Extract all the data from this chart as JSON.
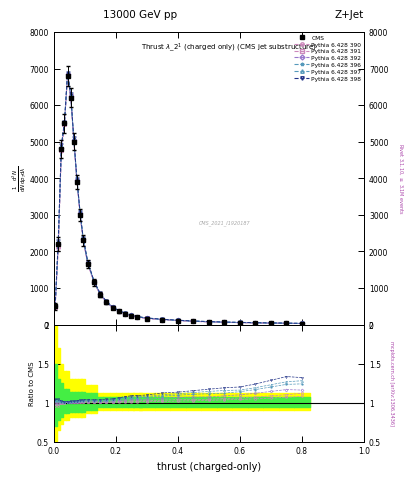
{
  "title_top": "13000 GeV pp",
  "title_right": "Z+Jet",
  "plot_title": "Thrust $\\lambda\\_2^1$ (charged only) (CMS jet substructure)",
  "xlabel": "thrust (charged-only)",
  "ylabel_main": "$\\frac{1}{\\mathrm{d}N}\\frac{\\mathrm{d}^2N}{\\mathrm{d}p_T\\mathrm{d}\\lambda}$",
  "ylabel_ratio": "Ratio to CMS",
  "right_label_main": "Rivet 3.1.10, $\\geq$ 3.1M events",
  "right_label_ratio": "mcplots.cern.ch [arXiv:1306.3436]",
  "watermark": "CMS_2021_I1920187",
  "cms_label": "CMS",
  "legend_entries": [
    "Pythia 6.428 390",
    "Pythia 6.428 391",
    "Pythia 6.428 392",
    "Pythia 6.428 396",
    "Pythia 6.428 397",
    "Pythia 6.428 398"
  ],
  "line_colors": [
    "#cc88bb",
    "#cc88bb",
    "#9977cc",
    "#5599bb",
    "#5599bb",
    "#223388"
  ],
  "marker_styles": [
    "o",
    "s",
    "D",
    "*",
    "^",
    "v"
  ],
  "ylim_main": [
    0,
    8000
  ],
  "ylim_ratio": [
    0.5,
    2.0
  ],
  "xlim": [
    0.0,
    1.0
  ],
  "yticks_main": [
    0,
    1000,
    2000,
    3000,
    4000,
    5000,
    6000,
    7000,
    8000
  ],
  "ytick_labels_main": [
    "0",
    "1000",
    "2000",
    "3000",
    "4000",
    "5000",
    "6000",
    "7000",
    "8000"
  ],
  "yticks_ratio": [
    0.5,
    1.0,
    1.5,
    2.0
  ],
  "ytick_labels_ratio": [
    "0.5",
    "1",
    "1.5",
    "2"
  ],
  "background_color": "#ffffff",
  "thrust_bins": [
    0.005,
    0.015,
    0.025,
    0.035,
    0.045,
    0.055,
    0.065,
    0.075,
    0.085,
    0.095,
    0.11,
    0.13,
    0.15,
    0.17,
    0.19,
    0.21,
    0.23,
    0.25,
    0.27,
    0.3,
    0.35,
    0.4,
    0.45,
    0.5,
    0.55,
    0.6,
    0.65,
    0.7,
    0.75,
    0.8
  ],
  "cms_data": [
    500,
    2200,
    4800,
    5500,
    6800,
    6200,
    5000,
    3900,
    3000,
    2300,
    1650,
    1150,
    820,
    610,
    460,
    360,
    290,
    240,
    200,
    165,
    130,
    105,
    85,
    70,
    58,
    50,
    42,
    35,
    30,
    25
  ],
  "cms_err": [
    100,
    200,
    250,
    260,
    280,
    260,
    230,
    200,
    170,
    140,
    110,
    85,
    65,
    52,
    42,
    34,
    28,
    24,
    20,
    17,
    14,
    12,
    10,
    9,
    8,
    7,
    6,
    5,
    5,
    4
  ],
  "pythia_data_390": [
    480,
    2100,
    4750,
    5480,
    6820,
    6230,
    5020,
    3920,
    3020,
    2310,
    1660,
    1155,
    822,
    612,
    462,
    362,
    292,
    242,
    202,
    167,
    132,
    107,
    87,
    72,
    60,
    52,
    44,
    37,
    32,
    27
  ],
  "pythia_data_391": [
    490,
    2150,
    4780,
    5490,
    6830,
    6240,
    5030,
    3930,
    3030,
    2320,
    1665,
    1160,
    825,
    615,
    465,
    365,
    295,
    245,
    204,
    169,
    134,
    109,
    88,
    73,
    61,
    53,
    45,
    38,
    33,
    28
  ],
  "pythia_data_392": [
    500,
    2200,
    4820,
    5510,
    6850,
    6260,
    5050,
    3950,
    3050,
    2340,
    1680,
    1170,
    832,
    620,
    470,
    370,
    300,
    250,
    208,
    172,
    137,
    112,
    91,
    75,
    63,
    55,
    47,
    40,
    35,
    29
  ],
  "pythia_data_396": [
    510,
    2250,
    4860,
    5530,
    6870,
    6280,
    5070,
    3970,
    3070,
    2360,
    1695,
    1180,
    840,
    628,
    476,
    376,
    306,
    255,
    212,
    176,
    141,
    115,
    94,
    78,
    65,
    57,
    49,
    42,
    37,
    31
  ],
  "pythia_data_397": [
    515,
    2270,
    4880,
    5540,
    6880,
    6290,
    5080,
    3980,
    3080,
    2370,
    1705,
    1185,
    845,
    632,
    479,
    379,
    309,
    258,
    215,
    178,
    143,
    117,
    96,
    80,
    67,
    58,
    50,
    43,
    38,
    32
  ],
  "pythia_data_398": [
    520,
    2290,
    4900,
    5550,
    6890,
    6300,
    5090,
    3990,
    3090,
    2380,
    1715,
    1190,
    850,
    636,
    482,
    382,
    312,
    261,
    218,
    181,
    146,
    119,
    98,
    82,
    69,
    60,
    52,
    45,
    40,
    33
  ]
}
